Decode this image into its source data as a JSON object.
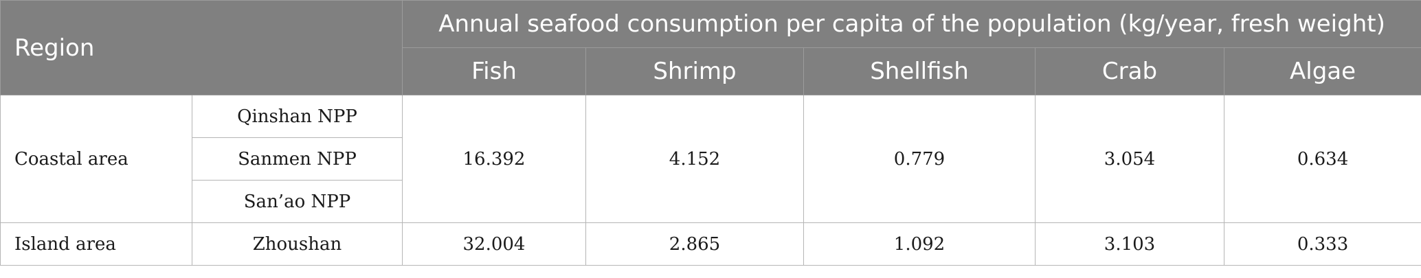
{
  "table": {
    "header": {
      "region_label": "Region",
      "group_label": "Annual seafood consumption per capita of the population (kg/year, fresh weight)",
      "columns": [
        "Fish",
        "Shrimp",
        "Shellfish",
        "Crab",
        "Algae"
      ]
    },
    "coastal": {
      "region": "Coastal area",
      "sites": [
        "Qinshan NPP",
        "Sanmen NPP",
        "San’ao NPP"
      ],
      "values": [
        "16.392",
        "4.152",
        "0.779",
        "3.054",
        "0.634"
      ]
    },
    "island": {
      "region": "Island area",
      "site": "Zhoushan",
      "values": [
        "32.004",
        "2.865",
        "1.092",
        "3.103",
        "0.333"
      ]
    }
  }
}
